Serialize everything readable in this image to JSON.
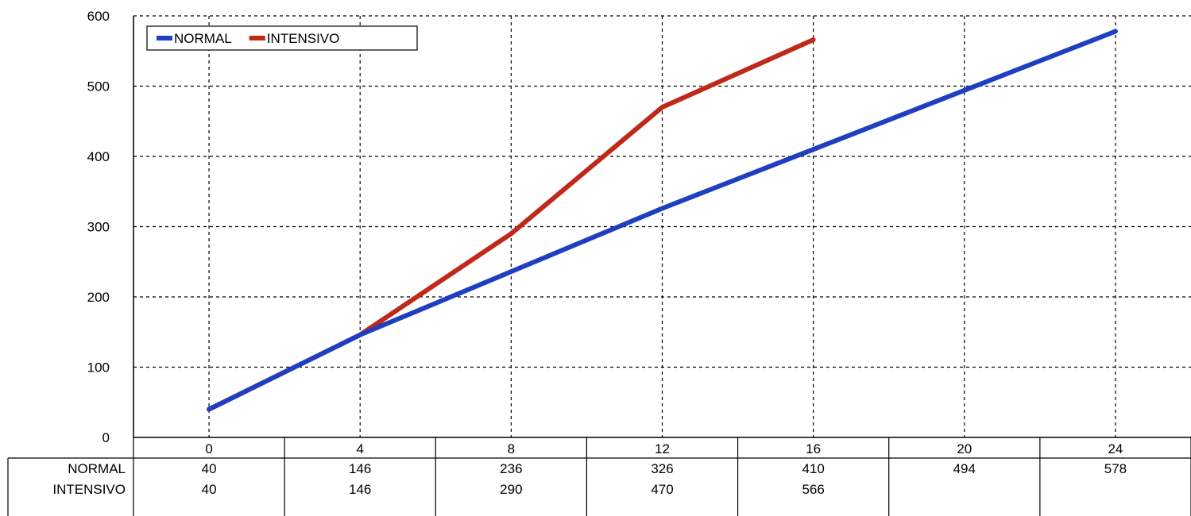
{
  "chart_data": {
    "type": "line",
    "title": "",
    "xlabel": "",
    "ylabel": "",
    "categories": [
      "0",
      "4",
      "8",
      "12",
      "16",
      "20",
      "24"
    ],
    "x": [
      0,
      4,
      8,
      12,
      16,
      20,
      24
    ],
    "ylim": [
      0,
      600
    ],
    "yticks": [
      0,
      100,
      200,
      300,
      400,
      500,
      600
    ],
    "grid": true,
    "legend": "top-left",
    "series": [
      {
        "name": "NORMAL",
        "color": "#1f3fc0",
        "values": [
          40,
          146,
          236,
          326,
          410,
          494,
          578
        ]
      },
      {
        "name": "INTENSIVO",
        "color": "#c0281a",
        "values": [
          40,
          146,
          290,
          470,
          566,
          null,
          null
        ]
      }
    ],
    "data_table": true
  }
}
